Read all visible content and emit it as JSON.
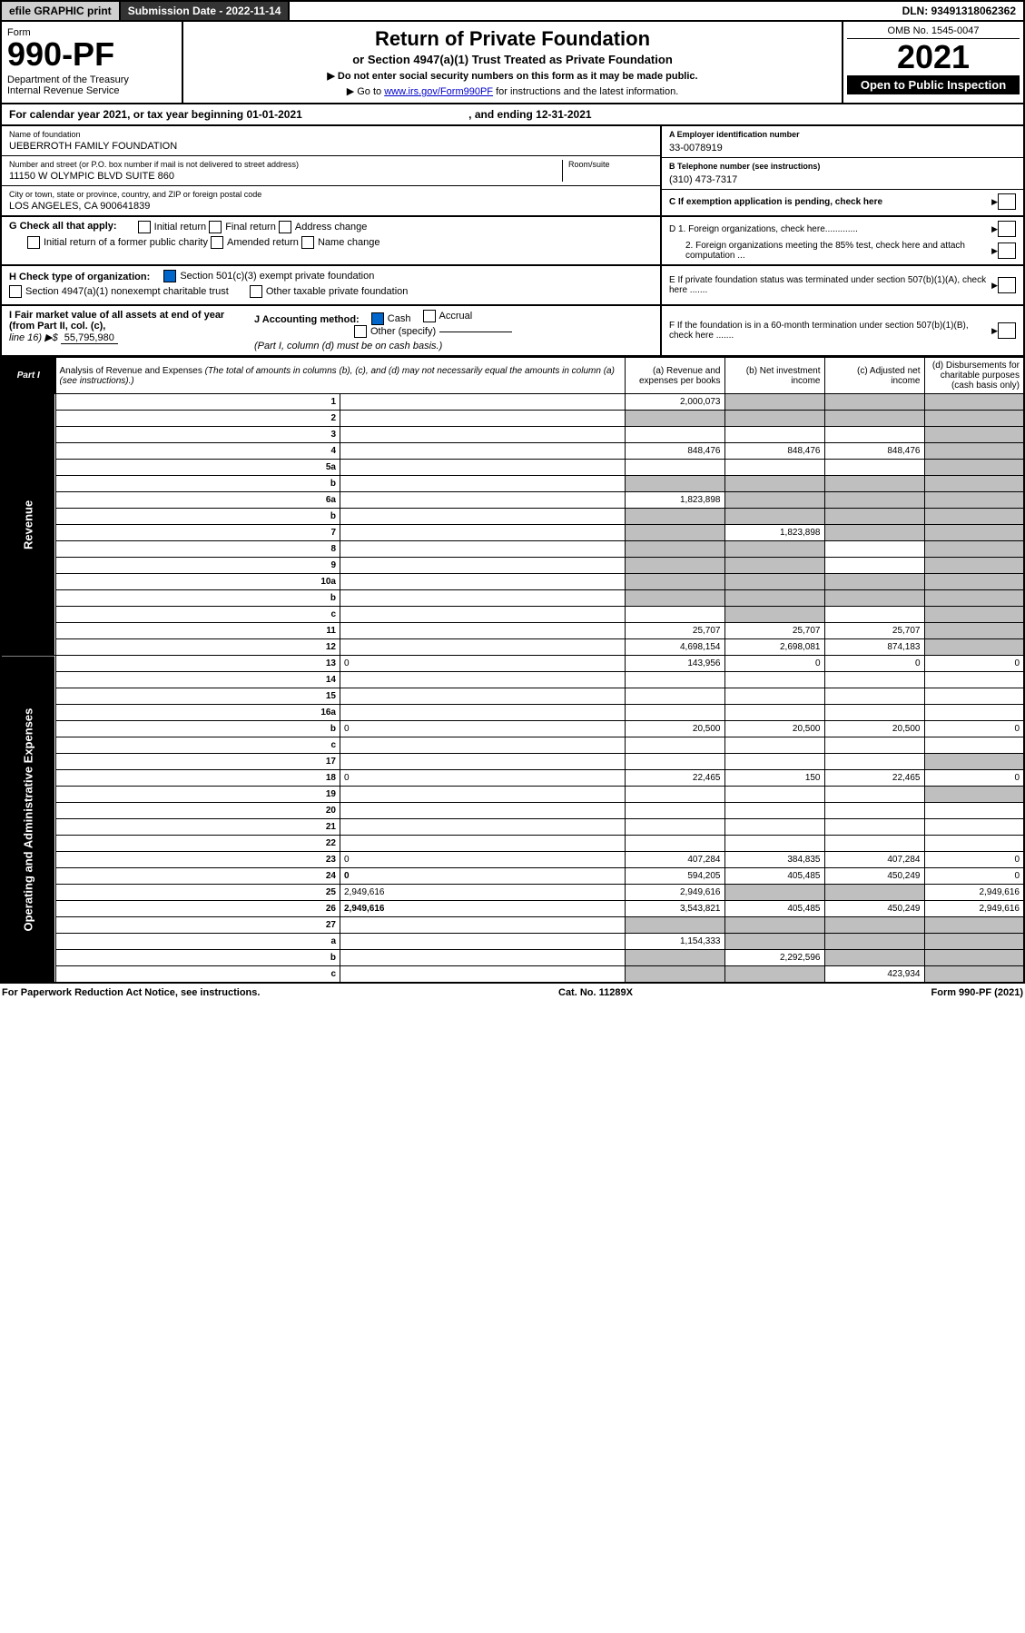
{
  "topbar": {
    "efile": "efile GRAPHIC print",
    "sub_label": "Submission Date - 2022-11-14",
    "dln": "DLN: 93491318062362"
  },
  "header": {
    "form_word": "Form",
    "form_num": "990-PF",
    "dept": "Department of the Treasury",
    "irs": "Internal Revenue Service",
    "title": "Return of Private Foundation",
    "subtitle": "or Section 4947(a)(1) Trust Treated as Private Foundation",
    "note1": "▶ Do not enter social security numbers on this form as it may be made public.",
    "note2_pre": "▶ Go to ",
    "note2_link": "www.irs.gov/Form990PF",
    "note2_post": " for instructions and the latest information.",
    "omb": "OMB No. 1545-0047",
    "year": "2021",
    "inspect": "Open to Public Inspection"
  },
  "calendar": {
    "text": "For calendar year 2021, or tax year beginning 01-01-2021",
    "ending": ", and ending 12-31-2021"
  },
  "name_block": {
    "name_lbl": "Name of foundation",
    "name_val": "UEBERROTH FAMILY FOUNDATION",
    "addr_lbl": "Number and street (or P.O. box number if mail is not delivered to street address)",
    "addr_val": "11150 W OLYMPIC BLVD SUITE 860",
    "room_lbl": "Room/suite",
    "city_lbl": "City or town, state or province, country, and ZIP or foreign postal code",
    "city_val": "LOS ANGELES, CA  900641839"
  },
  "right_block": {
    "a_lbl": "A Employer identification number",
    "a_val": "33-0078919",
    "b_lbl": "B Telephone number (see instructions)",
    "b_val": "(310) 473-7317",
    "c_lbl": "C If exemption application is pending, check here",
    "d1": "D 1. Foreign organizations, check here.............",
    "d2": "2. Foreign organizations meeting the 85% test, check here and attach computation ...",
    "e": "E  If private foundation status was terminated under section 507(b)(1)(A), check here .......",
    "f": "F  If the foundation is in a 60-month termination under section 507(b)(1)(B), check here ......."
  },
  "g": {
    "label": "G Check all that apply:",
    "opts": [
      "Initial return",
      "Final return",
      "Address change",
      "Initial return of a former public charity",
      "Amended return",
      "Name change"
    ]
  },
  "h": {
    "label": "H Check type of organization:",
    "opt1": "Section 501(c)(3) exempt private foundation",
    "opt2": "Section 4947(a)(1) nonexempt charitable trust",
    "opt3": "Other taxable private foundation"
  },
  "i": {
    "label": "I Fair market value of all assets at end of year (from Part II, col. (c),",
    "line16": "line 16) ▶$",
    "val": "55,795,980"
  },
  "j": {
    "label": "J Accounting method:",
    "cash": "Cash",
    "accrual": "Accrual",
    "other": "Other (specify)",
    "note": "(Part I, column (d) must be on cash basis.)"
  },
  "part1": {
    "tab": "Part I",
    "title": "Analysis of Revenue and Expenses",
    "paren": " (The total of amounts in columns (b), (c), and (d) may not necessarily equal the amounts in column (a) (see instructions).)",
    "col_a": "(a) Revenue and expenses per books",
    "col_b": "(b) Net investment income",
    "col_c": "(c) Adjusted net income",
    "col_d": "(d) Disbursements for charitable purposes (cash basis only)",
    "side_rev": "Revenue",
    "side_exp": "Operating and Administrative Expenses"
  },
  "rows": [
    {
      "n": "1",
      "d": "",
      "a": "2,000,073",
      "b": "",
      "c": "",
      "shade_b": true,
      "shade_c": true,
      "shade_d": true
    },
    {
      "n": "2",
      "d": "",
      "a": "",
      "b": "",
      "c": "",
      "shade_a": true,
      "shade_b": true,
      "shade_c": true,
      "shade_d": true
    },
    {
      "n": "3",
      "d": "",
      "a": "",
      "b": "",
      "c": "",
      "shade_d": true
    },
    {
      "n": "4",
      "d": "",
      "a": "848,476",
      "b": "848,476",
      "c": "848,476",
      "shade_d": true
    },
    {
      "n": "5a",
      "d": "",
      "a": "",
      "b": "",
      "c": "",
      "shade_d": true
    },
    {
      "n": "b",
      "d": "",
      "a": "",
      "b": "",
      "c": "",
      "shade_a": true,
      "shade_b": true,
      "shade_c": true,
      "shade_d": true
    },
    {
      "n": "6a",
      "d": "",
      "a": "1,823,898",
      "b": "",
      "c": "",
      "shade_b": true,
      "shade_c": true,
      "shade_d": true
    },
    {
      "n": "b",
      "d": "",
      "a": "",
      "b": "",
      "c": "",
      "shade_a": true,
      "shade_b": true,
      "shade_c": true,
      "shade_d": true
    },
    {
      "n": "7",
      "d": "",
      "a": "",
      "b": "1,823,898",
      "c": "",
      "shade_a": true,
      "shade_c": true,
      "shade_d": true
    },
    {
      "n": "8",
      "d": "",
      "a": "",
      "b": "",
      "c": "",
      "shade_a": true,
      "shade_b": true,
      "shade_d": true
    },
    {
      "n": "9",
      "d": "",
      "a": "",
      "b": "",
      "c": "",
      "shade_a": true,
      "shade_b": true,
      "shade_d": true
    },
    {
      "n": "10a",
      "d": "",
      "a": "",
      "b": "",
      "c": "",
      "shade_a": true,
      "shade_b": true,
      "shade_c": true,
      "shade_d": true
    },
    {
      "n": "b",
      "d": "",
      "a": "",
      "b": "",
      "c": "",
      "shade_a": true,
      "shade_b": true,
      "shade_c": true,
      "shade_d": true
    },
    {
      "n": "c",
      "d": "",
      "a": "",
      "b": "",
      "c": "",
      "shade_b": true,
      "shade_d": true
    },
    {
      "n": "11",
      "d": "",
      "a": "25,707",
      "b": "25,707",
      "c": "25,707",
      "shade_d": true
    },
    {
      "n": "12",
      "d": "",
      "a": "4,698,154",
      "b": "2,698,081",
      "c": "874,183",
      "bold": true,
      "shade_d": true
    },
    {
      "n": "13",
      "d": "0",
      "a": "143,956",
      "b": "0",
      "c": "0"
    },
    {
      "n": "14",
      "d": "",
      "a": "",
      "b": "",
      "c": ""
    },
    {
      "n": "15",
      "d": "",
      "a": "",
      "b": "",
      "c": ""
    },
    {
      "n": "16a",
      "d": "",
      "a": "",
      "b": "",
      "c": ""
    },
    {
      "n": "b",
      "d": "0",
      "a": "20,500",
      "b": "20,500",
      "c": "20,500"
    },
    {
      "n": "c",
      "d": "",
      "a": "",
      "b": "",
      "c": ""
    },
    {
      "n": "17",
      "d": "",
      "a": "",
      "b": "",
      "c": "",
      "shade_d": true
    },
    {
      "n": "18",
      "d": "0",
      "a": "22,465",
      "b": "150",
      "c": "22,465"
    },
    {
      "n": "19",
      "d": "",
      "a": "",
      "b": "",
      "c": "",
      "shade_d": true
    },
    {
      "n": "20",
      "d": "",
      "a": "",
      "b": "",
      "c": ""
    },
    {
      "n": "21",
      "d": "",
      "a": "",
      "b": "",
      "c": ""
    },
    {
      "n": "22",
      "d": "",
      "a": "",
      "b": "",
      "c": ""
    },
    {
      "n": "23",
      "d": "0",
      "a": "407,284",
      "b": "384,835",
      "c": "407,284"
    },
    {
      "n": "24",
      "d": "0",
      "a": "594,205",
      "b": "405,485",
      "c": "450,249",
      "bold": true
    },
    {
      "n": "25",
      "d": "2,949,616",
      "a": "2,949,616",
      "b": "",
      "c": "",
      "shade_b": true,
      "shade_c": true
    },
    {
      "n": "26",
      "d": "2,949,616",
      "a": "3,543,821",
      "b": "405,485",
      "c": "450,249",
      "bold": true
    },
    {
      "n": "27",
      "d": "",
      "a": "",
      "b": "",
      "c": "",
      "shade_a": true,
      "shade_b": true,
      "shade_c": true,
      "shade_d": true
    },
    {
      "n": "a",
      "d": "",
      "a": "1,154,333",
      "b": "",
      "c": "",
      "bold": true,
      "shade_b": true,
      "shade_c": true,
      "shade_d": true
    },
    {
      "n": "b",
      "d": "",
      "a": "",
      "b": "2,292,596",
      "c": "",
      "bold": true,
      "shade_a": true,
      "shade_c": true,
      "shade_d": true
    },
    {
      "n": "c",
      "d": "",
      "a": "",
      "b": "",
      "c": "423,934",
      "bold": true,
      "shade_a": true,
      "shade_b": true,
      "shade_d": true
    }
  ],
  "footer": {
    "left": "For Paperwork Reduction Act Notice, see instructions.",
    "mid": "Cat. No. 11289X",
    "right": "Form 990-PF (2021)"
  }
}
